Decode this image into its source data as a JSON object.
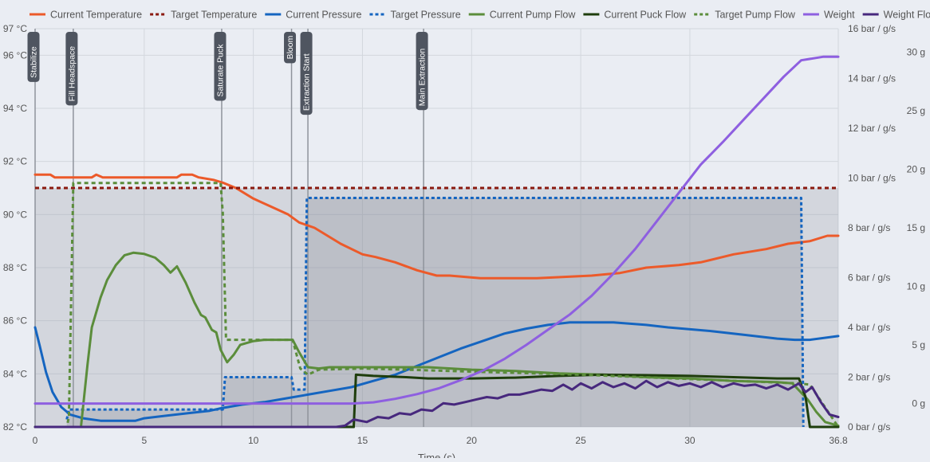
{
  "chart_data": {
    "type": "line",
    "legend_position": "top",
    "xlabel": "Time (s)",
    "x_range": [
      0,
      36.8
    ],
    "x_ticks": [
      "0",
      "5",
      "10",
      "15",
      "20",
      "25",
      "30",
      "36.8"
    ],
    "y_temperature": {
      "range": [
        82,
        97
      ],
      "ticks": [
        "82 °C",
        "84 °C",
        "86 °C",
        "88 °C",
        "90 °C",
        "92 °C",
        "94 °C",
        "96 °C",
        "97 °C"
      ]
    },
    "y_pressure_flow": {
      "range": [
        0,
        16
      ],
      "ticks": [
        "0 bar / g/s",
        "2 bar / g/s",
        "4 bar / g/s",
        "6 bar / g/s",
        "8 bar / g/s",
        "10 bar / g/s",
        "12 bar / g/s",
        "14 bar / g/s",
        "16 bar / g/s"
      ]
    },
    "y_weight": {
      "range": [
        -2,
        32
      ],
      "ticks": [
        "0 g",
        "5 g",
        "10 g",
        "15 g",
        "20 g",
        "25 g",
        "30 g"
      ]
    },
    "phases": [
      {
        "label": "Stabilize",
        "t": 0
      },
      {
        "label": "Fill Headspace",
        "t": 1.75
      },
      {
        "label": "Saturate Puck",
        "t": 8.55
      },
      {
        "label": "Bloom",
        "t": 11.75
      },
      {
        "label": "Extraction Start",
        "t": 12.5
      },
      {
        "label": "Main Extraction",
        "t": 17.8
      }
    ],
    "series": [
      {
        "name": "Current Temperature",
        "color": "#ec5a2a",
        "style": "solid",
        "axis": "temperature",
        "points": [
          [
            0,
            91.5
          ],
          [
            0.7,
            91.5
          ],
          [
            0.9,
            91.4
          ],
          [
            2.6,
            91.4
          ],
          [
            2.8,
            91.5
          ],
          [
            3.1,
            91.4
          ],
          [
            6.5,
            91.4
          ],
          [
            6.7,
            91.5
          ],
          [
            7.2,
            91.5
          ],
          [
            7.5,
            91.4
          ],
          [
            8.2,
            91.3
          ],
          [
            8.6,
            91.2
          ],
          [
            9.2,
            91.0
          ],
          [
            10,
            90.6
          ],
          [
            10.8,
            90.3
          ],
          [
            11.6,
            90.0
          ],
          [
            12.1,
            89.7
          ],
          [
            12.8,
            89.5
          ],
          [
            13.4,
            89.2
          ],
          [
            14,
            88.9
          ],
          [
            15,
            88.5
          ],
          [
            15.6,
            88.4
          ],
          [
            16.5,
            88.2
          ],
          [
            17.5,
            87.9
          ],
          [
            18.4,
            87.7
          ],
          [
            19,
            87.7
          ],
          [
            20.4,
            87.6
          ],
          [
            23,
            87.6
          ],
          [
            25.5,
            87.7
          ],
          [
            26.8,
            87.8
          ],
          [
            28,
            88.0
          ],
          [
            29.5,
            88.1
          ],
          [
            30.5,
            88.2
          ],
          [
            32,
            88.5
          ],
          [
            33.5,
            88.7
          ],
          [
            34.5,
            88.9
          ],
          [
            35.5,
            89.0
          ],
          [
            36.3,
            89.2
          ],
          [
            36.8,
            89.2
          ]
        ]
      },
      {
        "name": "Target Temperature",
        "color": "#8b1a10",
        "style": "dash",
        "axis": "temperature",
        "points": [
          [
            0,
            91.0
          ],
          [
            36.8,
            91.0
          ]
        ]
      },
      {
        "name": "Current Pressure",
        "color": "#1565c0",
        "style": "solid",
        "axis": "pressure",
        "points": [
          [
            0,
            4
          ],
          [
            0.2,
            3.3
          ],
          [
            0.5,
            2.2
          ],
          [
            0.8,
            1.4
          ],
          [
            1.2,
            0.8
          ],
          [
            1.6,
            0.5
          ],
          [
            2.2,
            0.35
          ],
          [
            3,
            0.25
          ],
          [
            4.6,
            0.25
          ],
          [
            5,
            0.35
          ],
          [
            6,
            0.45
          ],
          [
            7,
            0.55
          ],
          [
            8,
            0.65
          ],
          [
            8.5,
            0.75
          ],
          [
            9.5,
            0.9
          ],
          [
            10.5,
            1.0
          ],
          [
            11.5,
            1.15
          ],
          [
            12.5,
            1.3
          ],
          [
            13.5,
            1.45
          ],
          [
            14.5,
            1.6
          ],
          [
            15.5,
            1.85
          ],
          [
            16.5,
            2.1
          ],
          [
            17.5,
            2.45
          ],
          [
            18.5,
            2.8
          ],
          [
            19.5,
            3.15
          ],
          [
            20.5,
            3.45
          ],
          [
            21.5,
            3.75
          ],
          [
            22.5,
            3.95
          ],
          [
            23.5,
            4.1
          ],
          [
            24.5,
            4.2
          ],
          [
            26.5,
            4.2
          ],
          [
            28,
            4.1
          ],
          [
            29,
            4.0
          ],
          [
            31,
            3.85
          ],
          [
            32.5,
            3.7
          ],
          [
            34,
            3.55
          ],
          [
            34.8,
            3.5
          ],
          [
            35.5,
            3.5
          ],
          [
            36.8,
            3.65
          ]
        ]
      },
      {
        "name": "Target Pressure",
        "color": "#1565c0",
        "style": "dot",
        "axis": "pressure",
        "points": [
          [
            1.45,
            0.3
          ],
          [
            1.55,
            0.7
          ],
          [
            8.6,
            0.7
          ],
          [
            8.7,
            2.0
          ],
          [
            11.75,
            2.0
          ],
          [
            11.85,
            1.5
          ],
          [
            12.35,
            1.5
          ],
          [
            12.45,
            9.2
          ],
          [
            35.1,
            9.2
          ],
          [
            35.2,
            0
          ]
        ]
      },
      {
        "name": "Current Pump Flow",
        "color": "#5b8d3b",
        "style": "solid",
        "axis": "pressure",
        "points": [
          [
            0,
            0
          ],
          [
            2.1,
            0
          ],
          [
            2.4,
            2.5
          ],
          [
            2.6,
            4
          ],
          [
            3,
            5.2
          ],
          [
            3.3,
            5.9
          ],
          [
            3.7,
            6.5
          ],
          [
            4.1,
            6.9
          ],
          [
            4.5,
            7.0
          ],
          [
            5,
            6.95
          ],
          [
            5.5,
            6.8
          ],
          [
            5.9,
            6.5
          ],
          [
            6.2,
            6.2
          ],
          [
            6.5,
            6.45
          ],
          [
            6.9,
            5.8
          ],
          [
            7.3,
            5.0
          ],
          [
            7.6,
            4.5
          ],
          [
            7.8,
            4.4
          ],
          [
            8.1,
            3.9
          ],
          [
            8.3,
            3.8
          ],
          [
            8.5,
            3.1
          ],
          [
            8.8,
            2.6
          ],
          [
            9.1,
            2.9
          ],
          [
            9.4,
            3.3
          ],
          [
            10,
            3.45
          ],
          [
            10.5,
            3.5
          ],
          [
            11.8,
            3.5
          ],
          [
            12.1,
            3.0
          ],
          [
            12.5,
            2.4
          ],
          [
            13,
            2.35
          ],
          [
            13.5,
            2.4
          ],
          [
            15,
            2.4
          ],
          [
            18,
            2.4
          ],
          [
            20,
            2.3
          ],
          [
            22,
            2.25
          ],
          [
            24,
            2.15
          ],
          [
            26,
            2.1
          ],
          [
            28,
            2.0
          ],
          [
            30,
            1.95
          ],
          [
            32,
            1.85
          ],
          [
            34,
            1.8
          ],
          [
            34.7,
            1.75
          ],
          [
            35.4,
            1.1
          ],
          [
            35.8,
            0.6
          ],
          [
            36.2,
            0.2
          ],
          [
            36.8,
            0.05
          ]
        ]
      },
      {
        "name": "Current Puck Flow",
        "color": "#1e3d0c",
        "style": "solid",
        "axis": "pressure",
        "points": [
          [
            0,
            0
          ],
          [
            14.6,
            0
          ],
          [
            14.7,
            2.1
          ],
          [
            15.5,
            2.05
          ],
          [
            17,
            2.0
          ],
          [
            18,
            1.95
          ],
          [
            20,
            1.95
          ],
          [
            22,
            1.98
          ],
          [
            24,
            2.05
          ],
          [
            26,
            2.1
          ],
          [
            28,
            2.08
          ],
          [
            30,
            2.05
          ],
          [
            32,
            2.0
          ],
          [
            34,
            1.95
          ],
          [
            35,
            1.95
          ],
          [
            35.3,
            1.2
          ],
          [
            35.5,
            0
          ],
          [
            36.8,
            0
          ]
        ]
      },
      {
        "name": "Target Pump Flow",
        "color": "#5b8d3b",
        "style": "dash",
        "axis": "pressure",
        "points": [
          [
            0,
            0
          ],
          [
            1.45,
            0
          ],
          [
            1.55,
            0.4
          ],
          [
            1.75,
            9.8
          ],
          [
            8.5,
            9.8
          ],
          [
            8.6,
            8.6
          ],
          [
            8.75,
            3.5
          ],
          [
            11.8,
            3.5
          ],
          [
            12.15,
            2.35
          ],
          [
            12.5,
            2.1
          ],
          [
            13,
            2.3
          ],
          [
            15,
            2.35
          ],
          [
            25,
            2.1
          ],
          [
            35,
            1.75
          ],
          [
            35.5,
            1.7
          ],
          [
            36.8,
            0.0
          ]
        ]
      },
      {
        "name": "Weight",
        "color": "#8e5fe0",
        "style": "solid",
        "axis": "weight",
        "points": [
          [
            0,
            0
          ],
          [
            14.5,
            0
          ],
          [
            15.5,
            0.1
          ],
          [
            16.5,
            0.4
          ],
          [
            17.5,
            0.8
          ],
          [
            18.5,
            1.3
          ],
          [
            19.5,
            2.0
          ],
          [
            20.5,
            2.8
          ],
          [
            21.5,
            3.8
          ],
          [
            22.5,
            5.0
          ],
          [
            23.5,
            6.3
          ],
          [
            24.5,
            7.6
          ],
          [
            25.5,
            9.2
          ],
          [
            26.5,
            11.1
          ],
          [
            27.5,
            13.2
          ],
          [
            28.5,
            15.6
          ],
          [
            29.5,
            18.0
          ],
          [
            30.5,
            20.4
          ],
          [
            31.5,
            22.3
          ],
          [
            32.5,
            24.3
          ],
          [
            33.5,
            26.3
          ],
          [
            34.3,
            27.9
          ],
          [
            35.1,
            29.3
          ],
          [
            36.1,
            29.6
          ],
          [
            36.8,
            29.6
          ]
        ]
      },
      {
        "name": "Weight Flow",
        "color": "#47287d",
        "style": "solid",
        "axis": "pressure",
        "points": [
          [
            0,
            0
          ],
          [
            13.8,
            0
          ],
          [
            14.2,
            0.05
          ],
          [
            14.6,
            0.3
          ],
          [
            15.2,
            0.2
          ],
          [
            15.7,
            0.4
          ],
          [
            16.2,
            0.35
          ],
          [
            16.7,
            0.55
          ],
          [
            17.2,
            0.5
          ],
          [
            17.7,
            0.7
          ],
          [
            18.2,
            0.65
          ],
          [
            18.7,
            0.95
          ],
          [
            19.2,
            0.9
          ],
          [
            19.7,
            1.0
          ],
          [
            20.2,
            1.1
          ],
          [
            20.7,
            1.2
          ],
          [
            21.2,
            1.15
          ],
          [
            21.7,
            1.3
          ],
          [
            22.2,
            1.3
          ],
          [
            22.7,
            1.4
          ],
          [
            23.2,
            1.5
          ],
          [
            23.7,
            1.45
          ],
          [
            24.2,
            1.7
          ],
          [
            24.6,
            1.5
          ],
          [
            25,
            1.75
          ],
          [
            25.5,
            1.55
          ],
          [
            26,
            1.8
          ],
          [
            26.5,
            1.6
          ],
          [
            27,
            1.75
          ],
          [
            27.5,
            1.55
          ],
          [
            28,
            1.85
          ],
          [
            28.5,
            1.6
          ],
          [
            29,
            1.8
          ],
          [
            29.5,
            1.65
          ],
          [
            30,
            1.75
          ],
          [
            30.5,
            1.6
          ],
          [
            31,
            1.8
          ],
          [
            31.5,
            1.6
          ],
          [
            32,
            1.75
          ],
          [
            32.5,
            1.65
          ],
          [
            33,
            1.7
          ],
          [
            33.5,
            1.55
          ],
          [
            34,
            1.7
          ],
          [
            34.5,
            1.5
          ],
          [
            35,
            1.75
          ],
          [
            35.3,
            1.4
          ],
          [
            35.6,
            1.6
          ],
          [
            36,
            1.0
          ],
          [
            36.4,
            0.5
          ],
          [
            36.8,
            0.4
          ]
        ]
      }
    ]
  }
}
